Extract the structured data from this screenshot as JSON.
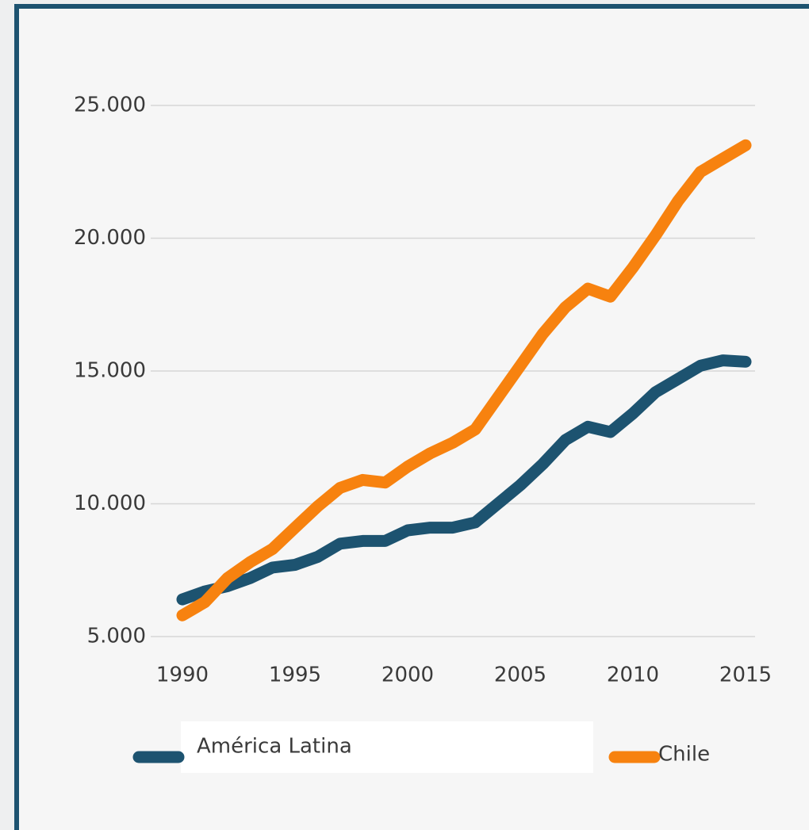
{
  "chart_data": {
    "type": "line",
    "x": [
      1990,
      1991,
      1992,
      1993,
      1994,
      1995,
      1996,
      1997,
      1998,
      1999,
      2000,
      2001,
      2002,
      2003,
      2004,
      2005,
      2006,
      2007,
      2008,
      2009,
      2010,
      2011,
      2012,
      2013,
      2014,
      2015
    ],
    "series": [
      {
        "name": "América Latina",
        "color": "#1d5370",
        "values": [
          6400,
          6700,
          6900,
          7200,
          7600,
          7700,
          8000,
          8500,
          8600,
          8600,
          9000,
          9100,
          9100,
          9300,
          10000,
          10700,
          11500,
          12400,
          12900,
          12700,
          13400,
          14200,
          14700,
          15200,
          15400,
          15350
        ]
      },
      {
        "name": "Chile",
        "color": "#f7820f",
        "values": [
          5800,
          6300,
          7200,
          7800,
          8300,
          9100,
          9900,
          10600,
          10900,
          10800,
          11400,
          11900,
          12300,
          12800,
          14000,
          15200,
          16400,
          17400,
          18100,
          17800,
          18900,
          20100,
          21400,
          22500,
          23000,
          23500
        ]
      }
    ],
    "xlim": [
      1990,
      2015
    ],
    "xticks": [
      1990,
      1995,
      2000,
      2005,
      2010,
      2015
    ],
    "ylim": [
      5000,
      25000
    ],
    "yticks": [
      {
        "value": 5000,
        "label": "5.000"
      },
      {
        "value": 10000,
        "label": "10.000"
      },
      {
        "value": 15000,
        "label": "15.000"
      },
      {
        "value": 20000,
        "label": "20.000"
      },
      {
        "value": 25000,
        "label": "25.000"
      }
    ],
    "grid": true
  }
}
